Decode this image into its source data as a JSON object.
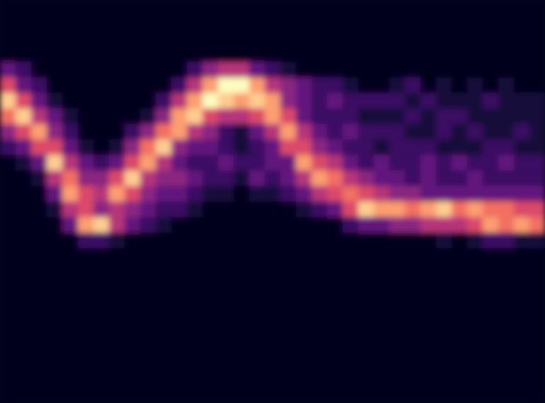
{
  "chart_data": {
    "type": "heatmap",
    "tick_labels": false,
    "zlim": [
      0,
      10
    ],
    "values": [
      [
        0,
        0,
        0,
        0,
        0,
        0,
        0,
        0,
        0,
        0,
        0,
        0,
        0,
        0,
        0,
        0,
        0,
        0,
        0,
        0,
        0,
        0,
        0,
        0,
        0,
        0,
        0,
        0,
        0,
        0,
        0,
        0,
        0,
        0,
        0
      ],
      [
        0,
        0,
        0,
        0,
        0,
        0,
        0,
        0,
        0,
        0,
        0,
        0,
        0,
        0,
        0,
        0,
        0,
        0,
        0,
        0,
        0,
        0,
        0,
        0,
        0,
        0,
        0,
        0,
        0,
        0,
        0,
        0,
        0,
        0,
        0
      ],
      [
        0,
        0,
        0,
        0,
        0,
        0,
        0,
        0,
        0,
        0,
        0,
        0,
        0,
        0,
        0,
        0,
        0,
        0,
        0,
        0,
        0,
        0,
        0,
        0,
        0,
        0,
        0,
        0,
        0,
        0,
        0,
        0,
        0,
        0,
        0
      ],
      [
        0,
        0,
        0,
        0,
        0,
        0,
        0,
        0,
        0,
        0,
        0,
        0,
        0,
        0,
        0,
        0,
        0,
        0,
        0,
        0,
        0,
        0,
        0,
        0,
        0,
        0,
        0,
        0,
        0,
        0,
        0,
        0,
        0,
        0,
        0
      ],
      [
        3,
        2,
        0,
        0,
        0,
        0,
        0,
        0,
        0,
        0,
        0,
        0,
        2,
        4,
        5,
        5,
        3,
        2,
        1,
        0,
        0,
        0,
        0,
        0,
        0,
        0,
        0,
        0,
        0,
        0,
        0,
        0,
        0,
        0,
        0
      ],
      [
        6,
        3,
        2,
        0,
        0,
        0,
        0,
        0,
        0,
        0,
        0,
        2,
        5,
        8,
        10,
        10,
        8,
        5,
        4,
        3,
        2,
        2,
        1,
        0,
        0,
        1,
        2,
        0,
        1,
        0,
        1,
        0,
        1,
        0,
        0
      ],
      [
        9,
        6,
        3,
        1,
        0,
        0,
        0,
        0,
        0,
        0,
        2,
        5,
        8,
        10,
        9,
        8,
        9,
        8,
        4,
        3,
        2,
        3,
        2,
        2,
        2,
        2,
        1,
        2,
        1,
        1,
        1,
        2,
        1,
        1,
        1
      ],
      [
        7,
        9,
        5,
        3,
        1,
        0,
        0,
        0,
        0,
        1,
        4,
        8,
        9,
        6,
        5,
        5,
        6,
        8,
        6,
        3,
        2,
        2,
        2,
        1,
        1,
        1,
        2,
        1,
        2,
        2,
        1,
        1,
        1,
        1,
        1
      ],
      [
        4,
        6,
        8,
        4,
        2,
        0,
        0,
        0,
        2,
        4,
        7,
        8,
        5,
        4,
        2,
        1,
        3,
        5,
        8,
        5,
        3,
        2,
        3,
        2,
        2,
        2,
        1,
        1,
        2,
        1,
        2,
        1,
        1,
        2,
        1
      ],
      [
        2,
        3,
        6,
        6,
        3,
        1,
        0,
        1,
        4,
        7,
        9,
        4,
        3,
        3,
        2,
        1,
        2,
        3,
        6,
        6,
        4,
        3,
        2,
        2,
        1,
        2,
        2,
        2,
        1,
        1,
        1,
        2,
        2,
        1,
        1
      ],
      [
        0,
        1,
        3,
        9,
        5,
        3,
        2,
        3,
        6,
        8,
        5,
        3,
        2,
        2,
        3,
        2,
        2,
        3,
        3,
        8,
        6,
        5,
        3,
        2,
        3,
        2,
        2,
        3,
        2,
        3,
        2,
        2,
        3,
        2,
        2
      ],
      [
        0,
        0,
        1,
        5,
        7,
        4,
        4,
        6,
        9,
        5,
        4,
        4,
        3,
        2,
        2,
        1,
        3,
        2,
        3,
        5,
        8,
        7,
        5,
        4,
        3,
        3,
        2,
        3,
        2,
        2,
        3,
        2,
        2,
        2,
        2
      ],
      [
        0,
        0,
        0,
        3,
        8,
        6,
        5,
        8,
        6,
        4,
        3,
        3,
        2,
        1,
        1,
        0,
        1,
        1,
        2,
        3,
        5,
        6,
        7,
        6,
        5,
        4,
        4,
        3,
        3,
        3,
        3,
        3,
        3,
        3,
        3
      ],
      [
        0,
        0,
        0,
        1,
        5,
        6,
        4,
        5,
        4,
        3,
        2,
        2,
        1,
        0,
        0,
        0,
        0,
        0,
        0,
        1,
        2,
        3,
        6,
        9,
        8,
        8,
        7,
        8,
        9,
        7,
        8,
        7,
        7,
        6,
        6
      ],
      [
        0,
        0,
        0,
        0,
        3,
        8,
        9,
        5,
        3,
        2,
        1,
        0,
        0,
        0,
        0,
        0,
        0,
        0,
        0,
        0,
        0,
        0,
        2,
        3,
        3,
        4,
        4,
        5,
        5,
        5,
        6,
        8,
        7,
        8,
        7
      ],
      [
        0,
        0,
        0,
        0,
        0,
        2,
        2,
        1,
        0,
        0,
        0,
        0,
        0,
        0,
        0,
        0,
        0,
        0,
        0,
        0,
        0,
        0,
        0,
        0,
        0,
        0,
        0,
        0,
        1,
        0,
        1,
        2,
        2,
        1,
        1
      ],
      [
        0,
        0,
        0,
        0,
        0,
        0,
        0,
        0,
        0,
        0,
        0,
        0,
        0,
        0,
        0,
        0,
        0,
        0,
        0,
        0,
        0,
        0,
        0,
        0,
        0,
        0,
        0,
        0,
        0,
        0,
        0,
        0,
        0,
        0,
        0
      ],
      [
        0,
        0,
        0,
        0,
        0,
        0,
        0,
        0,
        0,
        0,
        0,
        0,
        0,
        0,
        0,
        0,
        0,
        0,
        0,
        0,
        0,
        0,
        0,
        0,
        0,
        0,
        0,
        0,
        0,
        0,
        0,
        0,
        0,
        0,
        0
      ],
      [
        0,
        0,
        0,
        0,
        0,
        0,
        0,
        0,
        0,
        0,
        0,
        0,
        0,
        0,
        0,
        0,
        0,
        0,
        0,
        0,
        0,
        0,
        0,
        0,
        0,
        0,
        0,
        0,
        0,
        0,
        0,
        0,
        0,
        0,
        0
      ],
      [
        0,
        0,
        0,
        0,
        0,
        0,
        0,
        0,
        0,
        0,
        0,
        0,
        0,
        0,
        0,
        0,
        0,
        0,
        0,
        0,
        0,
        0,
        0,
        0,
        0,
        0,
        0,
        0,
        0,
        0,
        0,
        0,
        0,
        0,
        0
      ],
      [
        0,
        0,
        0,
        0,
        0,
        0,
        0,
        0,
        0,
        0,
        0,
        0,
        0,
        0,
        0,
        0,
        0,
        0,
        0,
        0,
        0,
        0,
        0,
        0,
        0,
        0,
        0,
        0,
        0,
        0,
        0,
        0,
        0,
        0,
        0
      ],
      [
        0,
        0,
        0,
        0,
        0,
        0,
        0,
        0,
        0,
        0,
        0,
        0,
        0,
        0,
        0,
        0,
        0,
        0,
        0,
        0,
        0,
        0,
        0,
        0,
        0,
        0,
        0,
        0,
        0,
        0,
        0,
        0,
        0,
        0,
        0
      ],
      [
        0,
        0,
        0,
        0,
        0,
        0,
        0,
        0,
        0,
        0,
        0,
        0,
        0,
        0,
        0,
        0,
        0,
        0,
        0,
        0,
        0,
        0,
        0,
        0,
        0,
        0,
        0,
        0,
        0,
        0,
        0,
        0,
        0,
        0,
        0
      ],
      [
        0,
        0,
        0,
        0,
        0,
        0,
        0,
        0,
        0,
        0,
        0,
        0,
        0,
        0,
        0,
        0,
        0,
        0,
        0,
        0,
        0,
        0,
        0,
        0,
        0,
        0,
        0,
        0,
        0,
        0,
        0,
        0,
        0,
        0,
        0
      ],
      [
        0,
        0,
        0,
        0,
        0,
        0,
        0,
        0,
        0,
        0,
        0,
        0,
        0,
        0,
        0,
        0,
        0,
        0,
        0,
        0,
        0,
        0,
        0,
        0,
        0,
        0,
        0,
        0,
        0,
        0,
        0,
        0,
        0,
        0,
        0
      ],
      [
        0,
        0,
        0,
        0,
        0,
        0,
        0,
        0,
        0,
        0,
        0,
        0,
        0,
        0,
        0,
        0,
        0,
        0,
        0,
        0,
        0,
        0,
        0,
        0,
        0,
        0,
        0,
        0,
        0,
        0,
        0,
        0,
        0,
        0,
        0
      ]
    ]
  }
}
